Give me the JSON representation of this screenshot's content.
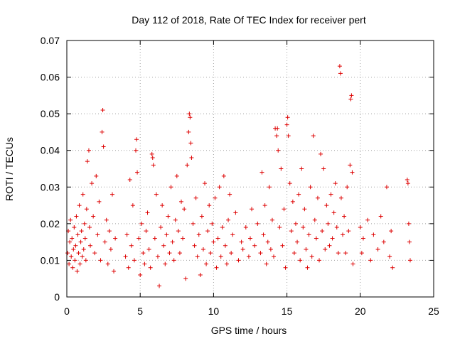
{
  "chart_data": {
    "type": "scatter",
    "title": "Day 112 of 2018, Rate Of TEC Index for receiver pert",
    "xlabel": "GPS time / hours",
    "ylabel": "ROTI / TECUs",
    "xlim": [
      0,
      25
    ],
    "ylim": [
      0,
      0.07
    ],
    "xticks": [
      "0",
      "5",
      "10",
      "15",
      "20",
      "25"
    ],
    "xtick_values": [
      0,
      5,
      10,
      15,
      20,
      25
    ],
    "yticks": [
      "0",
      "0.01",
      "0.02",
      "0.03",
      "0.04",
      "0.05",
      "0.06",
      "0.07"
    ],
    "ytick_values": [
      0,
      0.01,
      0.02,
      0.03,
      0.04,
      0.05,
      0.06,
      0.07
    ],
    "grid": true,
    "marker": "+",
    "color": "#dd0000",
    "series": [
      {
        "name": "ROTI",
        "points": [
          [
            0.05,
            0.012
          ],
          [
            0.1,
            0.018
          ],
          [
            0.15,
            0.009
          ],
          [
            0.2,
            0.015
          ],
          [
            0.25,
            0.021
          ],
          [
            0.3,
            0.011
          ],
          [
            0.35,
            0.016
          ],
          [
            0.4,
            0.008
          ],
          [
            0.45,
            0.013
          ],
          [
            0.5,
            0.019
          ],
          [
            0.55,
            0.01
          ],
          [
            0.6,
            0.014
          ],
          [
            0.65,
            0.022
          ],
          [
            0.7,
            0.007
          ],
          [
            0.75,
            0.017
          ],
          [
            0.8,
            0.012
          ],
          [
            0.85,
            0.025
          ],
          [
            0.9,
            0.009
          ],
          [
            0.95,
            0.015
          ],
          [
            1.0,
            0.018
          ],
          [
            1.05,
            0.011
          ],
          [
            1.1,
            0.028
          ],
          [
            1.15,
            0.013
          ],
          [
            1.2,
            0.02
          ],
          [
            1.25,
            0.016
          ],
          [
            1.3,
            0.01
          ],
          [
            1.35,
            0.024
          ],
          [
            1.4,
            0.037
          ],
          [
            1.5,
            0.04
          ],
          [
            1.55,
            0.019
          ],
          [
            1.6,
            0.014
          ],
          [
            1.7,
            0.031
          ],
          [
            1.8,
            0.022
          ],
          [
            1.9,
            0.012
          ],
          [
            2.0,
            0.033
          ],
          [
            2.1,
            0.017
          ],
          [
            2.2,
            0.026
          ],
          [
            2.3,
            0.01
          ],
          [
            2.4,
            0.045
          ],
          [
            2.45,
            0.051
          ],
          [
            2.5,
            0.041
          ],
          [
            2.6,
            0.015
          ],
          [
            2.7,
            0.021
          ],
          [
            2.8,
            0.009
          ],
          [
            2.9,
            0.018
          ],
          [
            3.0,
            0.013
          ],
          [
            3.1,
            0.028
          ],
          [
            3.2,
            0.007
          ],
          [
            3.3,
            0.016
          ],
          [
            4.0,
            0.011
          ],
          [
            4.1,
            0.017
          ],
          [
            4.2,
            0.008
          ],
          [
            4.3,
            0.032
          ],
          [
            4.4,
            0.014
          ],
          [
            4.5,
            0.025
          ],
          [
            4.6,
            0.01
          ],
          [
            4.7,
            0.04
          ],
          [
            4.75,
            0.043
          ],
          [
            4.8,
            0.034
          ],
          [
            4.9,
            0.016
          ],
          [
            5.0,
            0.006
          ],
          [
            5.1,
            0.02
          ],
          [
            5.2,
            0.012
          ],
          [
            5.3,
            0.009
          ],
          [
            5.4,
            0.018
          ],
          [
            5.5,
            0.023
          ],
          [
            5.6,
            0.013
          ],
          [
            5.7,
            0.008
          ],
          [
            5.8,
            0.039
          ],
          [
            5.85,
            0.038
          ],
          [
            5.9,
            0.036
          ],
          [
            6.0,
            0.016
          ],
          [
            6.1,
            0.028
          ],
          [
            6.2,
            0.011
          ],
          [
            6.3,
            0.003
          ],
          [
            6.4,
            0.019
          ],
          [
            6.5,
            0.025
          ],
          [
            6.6,
            0.014
          ],
          [
            6.7,
            0.009
          ],
          [
            6.8,
            0.017
          ],
          [
            6.9,
            0.022
          ],
          [
            7.0,
            0.012
          ],
          [
            7.1,
            0.03
          ],
          [
            7.2,
            0.015
          ],
          [
            7.3,
            0.01
          ],
          [
            7.4,
            0.021
          ],
          [
            7.5,
            0.033
          ],
          [
            7.6,
            0.018
          ],
          [
            7.7,
            0.012
          ],
          [
            7.8,
            0.026
          ],
          [
            7.9,
            0.016
          ],
          [
            8.0,
            0.024
          ],
          [
            8.1,
            0.005
          ],
          [
            8.2,
            0.036
          ],
          [
            8.3,
            0.045
          ],
          [
            8.35,
            0.05
          ],
          [
            8.4,
            0.049
          ],
          [
            8.45,
            0.042
          ],
          [
            8.5,
            0.038
          ],
          [
            8.6,
            0.02
          ],
          [
            8.7,
            0.014
          ],
          [
            8.8,
            0.027
          ],
          [
            8.9,
            0.011
          ],
          [
            9.0,
            0.017
          ],
          [
            9.1,
            0.006
          ],
          [
            9.2,
            0.022
          ],
          [
            9.3,
            0.013
          ],
          [
            9.4,
            0.031
          ],
          [
            9.5,
            0.009
          ],
          [
            9.6,
            0.018
          ],
          [
            9.7,
            0.025
          ],
          [
            9.8,
            0.012
          ],
          [
            9.9,
            0.02
          ],
          [
            10.0,
            0.015
          ],
          [
            10.1,
            0.027
          ],
          [
            10.2,
            0.008
          ],
          [
            10.3,
            0.016
          ],
          [
            10.4,
            0.03
          ],
          [
            10.5,
            0.011
          ],
          [
            10.6,
            0.019
          ],
          [
            10.7,
            0.033
          ],
          [
            10.8,
            0.014
          ],
          [
            10.9,
            0.009
          ],
          [
            11.0,
            0.021
          ],
          [
            11.1,
            0.028
          ],
          [
            11.2,
            0.012
          ],
          [
            11.3,
            0.017
          ],
          [
            11.5,
            0.023
          ],
          [
            11.7,
            0.01
          ],
          [
            11.9,
            0.015
          ],
          [
            12.0,
            0.013
          ],
          [
            12.2,
            0.019
          ],
          [
            12.4,
            0.011
          ],
          [
            12.5,
            0.016
          ],
          [
            12.6,
            0.024
          ],
          [
            12.8,
            0.014
          ],
          [
            13.0,
            0.02
          ],
          [
            13.2,
            0.012
          ],
          [
            13.3,
            0.034
          ],
          [
            13.4,
            0.017
          ],
          [
            13.5,
            0.025
          ],
          [
            13.6,
            0.009
          ],
          [
            13.7,
            0.015
          ],
          [
            13.8,
            0.03
          ],
          [
            13.9,
            0.013
          ],
          [
            14.0,
            0.021
          ],
          [
            14.1,
            0.011
          ],
          [
            14.2,
            0.046
          ],
          [
            14.3,
            0.044
          ],
          [
            14.35,
            0.046
          ],
          [
            14.4,
            0.04
          ],
          [
            14.5,
            0.019
          ],
          [
            14.6,
            0.035
          ],
          [
            14.7,
            0.014
          ],
          [
            14.8,
            0.024
          ],
          [
            14.9,
            0.008
          ],
          [
            15.0,
            0.047
          ],
          [
            15.05,
            0.049
          ],
          [
            15.1,
            0.044
          ],
          [
            15.2,
            0.031
          ],
          [
            15.3,
            0.018
          ],
          [
            15.4,
            0.026
          ],
          [
            15.5,
            0.012
          ],
          [
            15.6,
            0.02
          ],
          [
            15.7,
            0.015
          ],
          [
            15.8,
            0.028
          ],
          [
            15.9,
            0.01
          ],
          [
            16.0,
            0.035
          ],
          [
            16.1,
            0.019
          ],
          [
            16.2,
            0.024
          ],
          [
            16.3,
            0.013
          ],
          [
            16.4,
            0.008
          ],
          [
            16.5,
            0.017
          ],
          [
            16.6,
            0.03
          ],
          [
            16.7,
            0.011
          ],
          [
            16.8,
            0.044
          ],
          [
            16.9,
            0.021
          ],
          [
            17.0,
            0.016
          ],
          [
            17.1,
            0.027
          ],
          [
            17.2,
            0.01
          ],
          [
            17.3,
            0.039
          ],
          [
            17.4,
            0.018
          ],
          [
            17.5,
            0.035
          ],
          [
            17.6,
            0.013
          ],
          [
            17.7,
            0.025
          ],
          [
            17.8,
            0.02
          ],
          [
            17.9,
            0.014
          ],
          [
            18.0,
            0.028
          ],
          [
            18.1,
            0.016
          ],
          [
            18.2,
            0.023
          ],
          [
            18.3,
            0.031
          ],
          [
            18.4,
            0.019
          ],
          [
            18.5,
            0.012
          ],
          [
            18.6,
            0.063
          ],
          [
            18.65,
            0.061
          ],
          [
            18.7,
            0.027
          ],
          [
            18.8,
            0.017
          ],
          [
            18.9,
            0.022
          ],
          [
            19.0,
            0.012
          ],
          [
            19.1,
            0.03
          ],
          [
            19.2,
            0.018
          ],
          [
            19.3,
            0.036
          ],
          [
            19.35,
            0.054
          ],
          [
            19.4,
            0.055
          ],
          [
            19.45,
            0.034
          ],
          [
            19.5,
            0.009
          ],
          [
            20.0,
            0.019
          ],
          [
            20.1,
            0.012
          ],
          [
            20.2,
            0.016
          ],
          [
            20.5,
            0.021
          ],
          [
            20.7,
            0.01
          ],
          [
            20.9,
            0.017
          ],
          [
            21.2,
            0.013
          ],
          [
            21.4,
            0.022
          ],
          [
            21.6,
            0.015
          ],
          [
            21.8,
            0.03
          ],
          [
            22.0,
            0.011
          ],
          [
            22.1,
            0.018
          ],
          [
            22.2,
            0.008
          ],
          [
            23.2,
            0.032
          ],
          [
            23.25,
            0.031
          ],
          [
            23.3,
            0.02
          ],
          [
            23.35,
            0.015
          ],
          [
            23.4,
            0.01
          ]
        ]
      }
    ]
  }
}
